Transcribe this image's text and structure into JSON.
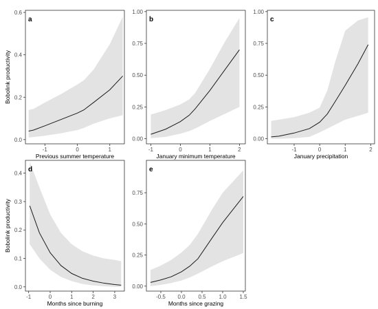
{
  "chart_data": [
    {
      "panel": "a",
      "type": "line",
      "xlabel": "Previous summer temperature",
      "ylabel": "Bobolink productivity",
      "xlim": [
        -1.6,
        1.45
      ],
      "ylim": [
        -0.02,
        0.61
      ],
      "xticks": [
        -1,
        0,
        1
      ],
      "xtick_labels": [
        "-1",
        "0",
        "1"
      ],
      "yticks": [
        0.0,
        0.2,
        0.4,
        0.6
      ],
      "ytick_labels": [
        "0.0",
        "0.2",
        "0.4",
        "0.6"
      ],
      "grid": false,
      "series": [
        {
          "x": [
            -1.5,
            -1.35,
            -1.0,
            -0.5,
            0.0,
            0.2,
            0.5,
            1.0,
            1.4
          ],
          "y": [
            0.04,
            0.045,
            0.065,
            0.095,
            0.125,
            0.14,
            0.175,
            0.235,
            0.3
          ],
          "lower": [
            0.01,
            0.012,
            0.018,
            0.03,
            0.045,
            0.055,
            0.075,
            0.1,
            0.115
          ],
          "upper": [
            0.14,
            0.145,
            0.175,
            0.215,
            0.26,
            0.28,
            0.33,
            0.45,
            0.58
          ]
        }
      ]
    },
    {
      "panel": "b",
      "type": "line",
      "xlabel": "January minimum temperature",
      "ylabel": "",
      "xlim": [
        -1.15,
        2.2
      ],
      "ylim": [
        -0.04,
        1.01
      ],
      "xticks": [
        -1,
        0,
        1,
        2
      ],
      "xtick_labels": [
        "-1",
        "0",
        "1",
        "2"
      ],
      "yticks": [
        0.0,
        0.25,
        0.5,
        0.75,
        1.0
      ],
      "ytick_labels": [
        "0.00",
        "0.25",
        "0.50",
        "0.75",
        "1.00"
      ],
      "grid": false,
      "series": [
        {
          "x": [
            -1.0,
            -0.5,
            0.0,
            0.3,
            0.5,
            1.0,
            1.5,
            2.0
          ],
          "y": [
            0.035,
            0.075,
            0.135,
            0.185,
            0.235,
            0.38,
            0.54,
            0.7
          ],
          "lower": [
            0.005,
            0.015,
            0.04,
            0.06,
            0.08,
            0.14,
            0.195,
            0.25
          ],
          "upper": [
            0.19,
            0.225,
            0.27,
            0.31,
            0.36,
            0.55,
            0.76,
            0.95
          ]
        }
      ]
    },
    {
      "panel": "c",
      "type": "line",
      "xlabel": "January precipitation",
      "ylabel": "",
      "xlim": [
        -2.05,
        2.15
      ],
      "ylim": [
        -0.04,
        1.01
      ],
      "xticks": [
        -1,
        0,
        1,
        2
      ],
      "xtick_labels": [
        "-1",
        "0",
        "1",
        "2"
      ],
      "yticks": [
        0.0,
        0.25,
        0.5,
        0.75,
        1.0
      ],
      "ytick_labels": [
        "0.00",
        "0.25",
        "0.50",
        "0.75",
        "1.00"
      ],
      "grid": false,
      "series": [
        {
          "x": [
            -1.9,
            -1.6,
            -1.0,
            -0.4,
            0.0,
            0.3,
            0.6,
            1.0,
            1.5,
            1.9
          ],
          "y": [
            0.015,
            0.02,
            0.045,
            0.08,
            0.13,
            0.195,
            0.29,
            0.42,
            0.59,
            0.74
          ],
          "lower": [
            0.0,
            0.0,
            0.005,
            0.015,
            0.05,
            0.08,
            0.11,
            0.15,
            0.18,
            0.205
          ],
          "upper": [
            0.14,
            0.15,
            0.17,
            0.205,
            0.245,
            0.38,
            0.6,
            0.85,
            0.93,
            0.955
          ]
        }
      ]
    },
    {
      "panel": "d",
      "type": "line",
      "xlabel": "Months since burning",
      "ylabel": "Bobolink productivity",
      "xlim": [
        -1.15,
        3.45
      ],
      "ylim": [
        -0.015,
        0.445
      ],
      "xticks": [
        -1,
        0,
        1,
        2,
        3
      ],
      "xtick_labels": [
        "-1",
        "0",
        "1",
        "2",
        "3"
      ],
      "yticks": [
        0.0,
        0.1,
        0.2,
        0.3,
        0.4
      ],
      "ytick_labels": [
        "0.0",
        "0.1",
        "0.2",
        "0.3",
        "0.4"
      ],
      "grid": false,
      "series": [
        {
          "x": [
            -0.95,
            -0.5,
            0.0,
            0.5,
            1.0,
            1.5,
            2.0,
            2.5,
            3.0,
            3.3
          ],
          "y": [
            0.285,
            0.19,
            0.12,
            0.075,
            0.047,
            0.03,
            0.02,
            0.013,
            0.008,
            0.006
          ],
          "lower": [
            0.15,
            0.1,
            0.06,
            0.035,
            0.02,
            0.01,
            0.005,
            0.002,
            0.0,
            0.0
          ],
          "upper": [
            0.44,
            0.35,
            0.255,
            0.19,
            0.15,
            0.125,
            0.11,
            0.1,
            0.095,
            0.09
          ]
        }
      ]
    },
    {
      "panel": "e",
      "type": "line",
      "xlabel": "Months since grazing",
      "ylabel": "",
      "xlim": [
        -0.85,
        1.55
      ],
      "ylim": [
        -0.04,
        1.01
      ],
      "xticks": [
        -0.5,
        0.0,
        0.5,
        1.0,
        1.5
      ],
      "xtick_labels": [
        "-0.5",
        "0.0",
        "0.5",
        "1.0",
        "1.5"
      ],
      "yticks": [
        0.0,
        0.25,
        0.5,
        0.75
      ],
      "ytick_labels": [
        "0.00",
        "0.25",
        "0.50",
        "0.75"
      ],
      "grid": false,
      "series": [
        {
          "x": [
            -0.75,
            -0.5,
            -0.25,
            0.0,
            0.2,
            0.4,
            0.75,
            1.0,
            1.5
          ],
          "y": [
            0.03,
            0.05,
            0.075,
            0.115,
            0.16,
            0.22,
            0.39,
            0.51,
            0.72
          ],
          "lower": [
            0.0,
            0.01,
            0.025,
            0.045,
            0.07,
            0.1,
            0.16,
            0.2,
            0.265
          ],
          "upper": [
            0.13,
            0.165,
            0.21,
            0.27,
            0.33,
            0.42,
            0.62,
            0.75,
            0.93
          ]
        }
      ]
    }
  ]
}
